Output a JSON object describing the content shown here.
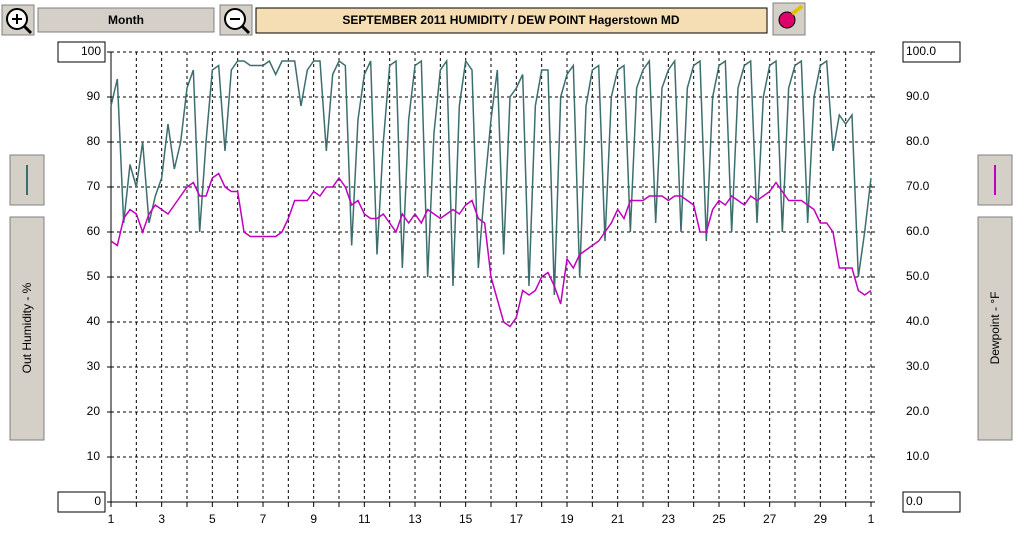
{
  "toolbar": {
    "range_label": "Month"
  },
  "chart_data": {
    "type": "line",
    "title": "SEPTEMBER 2011  HUMIDITY / DEW POINT  Hagerstown MD",
    "ylabel": "Out Humidity - %",
    "y2label": "Dewpoint - °F",
    "x": [
      1,
      1.25,
      1.5,
      1.75,
      2,
      2.25,
      2.5,
      2.75,
      3,
      3.25,
      3.5,
      3.75,
      4,
      4.25,
      4.5,
      4.75,
      5,
      5.25,
      5.5,
      5.75,
      6,
      6.25,
      6.5,
      6.75,
      7,
      7.25,
      7.5,
      7.75,
      8,
      8.25,
      8.5,
      8.75,
      9,
      9.25,
      9.5,
      9.75,
      10,
      10.25,
      10.5,
      10.75,
      11,
      11.25,
      11.5,
      11.75,
      12,
      12.25,
      12.5,
      12.75,
      13,
      13.25,
      13.5,
      13.75,
      14,
      14.25,
      14.5,
      14.75,
      15,
      15.25,
      15.5,
      15.75,
      16,
      16.25,
      16.5,
      16.75,
      17,
      17.25,
      17.5,
      17.75,
      18,
      18.25,
      18.5,
      18.75,
      19,
      19.25,
      19.5,
      19.75,
      20,
      20.25,
      20.5,
      20.75,
      21,
      21.25,
      21.5,
      21.75,
      22,
      22.25,
      22.5,
      22.75,
      23,
      23.25,
      23.5,
      23.75,
      24,
      24.25,
      24.5,
      24.75,
      25,
      25.25,
      25.5,
      25.75,
      26,
      26.25,
      26.5,
      26.75,
      27,
      27.25,
      27.5,
      27.75,
      28,
      28.25,
      28.5,
      28.75,
      29,
      29.25,
      29.5,
      29.75,
      30,
      30.25,
      30.5,
      30.75,
      31
    ],
    "xlim": [
      1,
      31
    ],
    "xticks": [
      1,
      3,
      5,
      7,
      9,
      11,
      13,
      15,
      17,
      19,
      21,
      23,
      25,
      27,
      29,
      {
        "value": 31,
        "label": "1"
      }
    ],
    "xminor_ticks": [
      2,
      4,
      6,
      8,
      10,
      12,
      14,
      16,
      18,
      20,
      22,
      24,
      26,
      28,
      30
    ],
    "ylim": [
      0,
      100
    ],
    "yticks": [
      0,
      10,
      20,
      30,
      40,
      50,
      60,
      70,
      80,
      90,
      100
    ],
    "y2lim": [
      0,
      100
    ],
    "y2ticks": [
      {
        "value": 0,
        "label": "0.0"
      },
      {
        "value": 10,
        "label": "10.0"
      },
      {
        "value": 20,
        "label": "20.0"
      },
      {
        "value": 30,
        "label": "30.0"
      },
      {
        "value": 40,
        "label": "40.0"
      },
      {
        "value": 50,
        "label": "50.0"
      },
      {
        "value": 60,
        "label": "60.0"
      },
      {
        "value": 70,
        "label": "70.0"
      },
      {
        "value": 80,
        "label": "80.0"
      },
      {
        "value": 90,
        "label": "90.0"
      },
      {
        "value": 100,
        "label": "100.0"
      }
    ],
    "grid": true,
    "series": [
      {
        "name": "Out Humidity",
        "color": "#3d6e6e",
        "axis": "y",
        "values": [
          88,
          94,
          62,
          75,
          70,
          80,
          62,
          68,
          72,
          84,
          74,
          80,
          92,
          96,
          60,
          80,
          96,
          97,
          78,
          96,
          98,
          98,
          97,
          97,
          97,
          98,
          95,
          98,
          98,
          98,
          88,
          96,
          98,
          98,
          78,
          95,
          98,
          97,
          57,
          85,
          95,
          98,
          55,
          80,
          97,
          98,
          52,
          85,
          97,
          98,
          50,
          82,
          96,
          98,
          48,
          88,
          98,
          96,
          52,
          70,
          85,
          96,
          55,
          90,
          92,
          95,
          48,
          88,
          96,
          96,
          46,
          90,
          95,
          97,
          50,
          88,
          96,
          97,
          58,
          90,
          96,
          97,
          60,
          92,
          96,
          98,
          62,
          92,
          96,
          98,
          60,
          92,
          97,
          98,
          58,
          90,
          97,
          98,
          60,
          92,
          97,
          98,
          62,
          90,
          97,
          98,
          60,
          92,
          97,
          98,
          62,
          90,
          97,
          98,
          78,
          86,
          84,
          86,
          50,
          60,
          72
        ]
      },
      {
        "name": "Dewpoint",
        "color": "#c000c0",
        "axis": "y2",
        "values": [
          58,
          57,
          63,
          65,
          64,
          60,
          64,
          66,
          65,
          64,
          66,
          68,
          70,
          71,
          68,
          68,
          72,
          73,
          70,
          69,
          69,
          60,
          59,
          59,
          59,
          59,
          59,
          60,
          63,
          67,
          67,
          67,
          69,
          68,
          70,
          70,
          72,
          70,
          66,
          67,
          64,
          63,
          63,
          64,
          62,
          60,
          64,
          62,
          64,
          62,
          65,
          64,
          63,
          64,
          65,
          64,
          66,
          67,
          63,
          62,
          50,
          45,
          40,
          39,
          41,
          47,
          46,
          47,
          50,
          51,
          48,
          44,
          54,
          52,
          55,
          56,
          57,
          58,
          60,
          62,
          65,
          63,
          67,
          67,
          67,
          68,
          68,
          68,
          67,
          68,
          68,
          67,
          66,
          60,
          60,
          65,
          67,
          66,
          68,
          67,
          66,
          68,
          67,
          68,
          69,
          71,
          69,
          67,
          67,
          67,
          66,
          65,
          62,
          62,
          60,
          52,
          52,
          52,
          47,
          46,
          47
        ]
      }
    ]
  }
}
